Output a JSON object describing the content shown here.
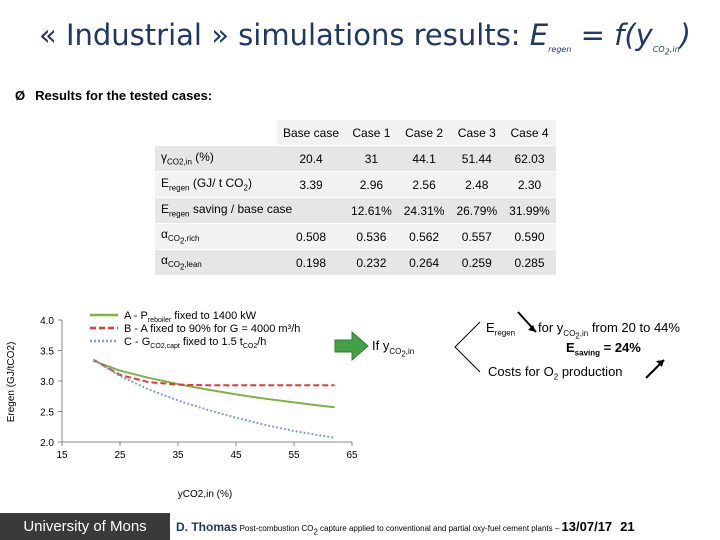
{
  "title": {
    "open": "« Industrial » simulations results: ",
    "formula_e": "E",
    "formula_e_sub": "regen",
    "formula_mid": " = f(y",
    "formula_y_sub": "CO",
    "formula_y_sub2": "2",
    "formula_y_sub3": ",in",
    "formula_close": ")"
  },
  "bullet": {
    "arrow": "Ø",
    "text": "Results for the tested cases:"
  },
  "table": {
    "headers": [
      "Base case",
      "Case 1",
      "Case 2",
      "Case 3",
      "Case 4"
    ],
    "rows": [
      {
        "label_main": "γ",
        "label_sub": "CO2,in",
        "label_tail": " (%)",
        "values": [
          "20.4",
          "31",
          "44.1",
          "51.44",
          "62.03"
        ]
      },
      {
        "label_main": "E",
        "label_sub": "regen",
        "label_tail": " (GJ/ t CO",
        "label_sub2": "2",
        "label_tail2": ")",
        "values": [
          "3.39",
          "2.96",
          "2.56",
          "2.48",
          "2.30"
        ]
      },
      {
        "label_main": "E",
        "label_sub": "regen",
        "label_tail": " saving / base case",
        "values": [
          "12.61%",
          "24.31%",
          "26.79%",
          "31.99%"
        ]
      },
      {
        "label_main": "α",
        "label_sub": "CO",
        "label_sub2": "2",
        "label_tail": ",rich",
        "values": [
          "0.508",
          "0.536",
          "0.562",
          "0.557",
          "0.590"
        ]
      },
      {
        "label_main": "α",
        "label_sub": "CO",
        "label_sub2": "2",
        "label_tail": ",lean",
        "values": [
          "0.198",
          "0.232",
          "0.264",
          "0.259",
          "0.285"
        ]
      }
    ]
  },
  "chart_data": {
    "type": "line",
    "ylabel": "Eregen (GJ/tCO2)",
    "xlabel": "yCO2,in (%)",
    "xlim": [
      15,
      65
    ],
    "ylim": [
      2.0,
      4.0
    ],
    "xticks": [
      "15",
      "25",
      "35",
      "45",
      "55",
      "65"
    ],
    "yticks": [
      "2.0",
      "2.5",
      "3.0",
      "3.5",
      "4.0"
    ],
    "series": [
      {
        "name": "A - Preboiler fixed to 1400 kW",
        "color": "#7cb342",
        "style": "solid",
        "x": [
          20.4,
          25,
          30,
          35,
          40,
          45,
          50,
          55,
          60,
          62
        ],
        "y": [
          3.33,
          3.17,
          3.05,
          2.95,
          2.86,
          2.78,
          2.71,
          2.65,
          2.59,
          2.57
        ]
      },
      {
        "name": "B - A fixed to 90% for G = 4000 m³/h",
        "color": "#e53935",
        "style": "dashed",
        "x": [
          20.4,
          25,
          30,
          35,
          40,
          45,
          50,
          55,
          62
        ],
        "y": [
          3.35,
          3.1,
          2.98,
          2.94,
          2.93,
          2.93,
          2.93,
          2.93,
          2.93
        ]
      },
      {
        "name": "C - GCO2,capt fixed to 1.5 tCO2/h",
        "color": "#7f9fcf",
        "style": "dotted",
        "x": [
          20.4,
          25,
          30,
          35,
          40,
          45,
          50,
          55,
          60,
          62
        ],
        "y": [
          3.35,
          3.08,
          2.86,
          2.68,
          2.53,
          2.4,
          2.28,
          2.18,
          2.1,
          2.07
        ]
      }
    ],
    "legend": [
      {
        "prefix": "A - P",
        "sub": "reboiler",
        "mid": " fixed to ",
        "tail": "1400 kW"
      },
      {
        "prefix": "B - A fixed to 90% for G = 4000 m³/h"
      },
      {
        "prefix": "C - G",
        "sub": "CO2,capt",
        "mid": " fixed to 1.5 t",
        "sub2": "CO2",
        "tail": "/h"
      }
    ],
    "legend_position": "top"
  },
  "annotation": {
    "if_text": "If y",
    "if_sub": "CO",
    "if_sub2": "2",
    "if_sub3": ",in",
    "eregen": "E",
    "eregen_sub": "regen",
    "for_text": "for y",
    "for_sub": "CO",
    "for_sub2": "2",
    "for_sub3": ",in",
    "for_tail": " from  20 to 44%",
    "esaving": "E",
    "esaving_sub": "saving",
    "esaving_tail": " = 24%",
    "costs": "Costs for O",
    "costs_sub": "2",
    "costs_tail": " production",
    "arrow_color": "#2e7d32"
  },
  "footer": {
    "university": "University of Mons",
    "author": "D. Thomas",
    "title_pre": " Post-combustion CO",
    "title_sub": "2",
    "title_post": " capture applied to conventional and partial oxy-fuel cement plants – ",
    "date": "13/07/17",
    "page": "21"
  }
}
